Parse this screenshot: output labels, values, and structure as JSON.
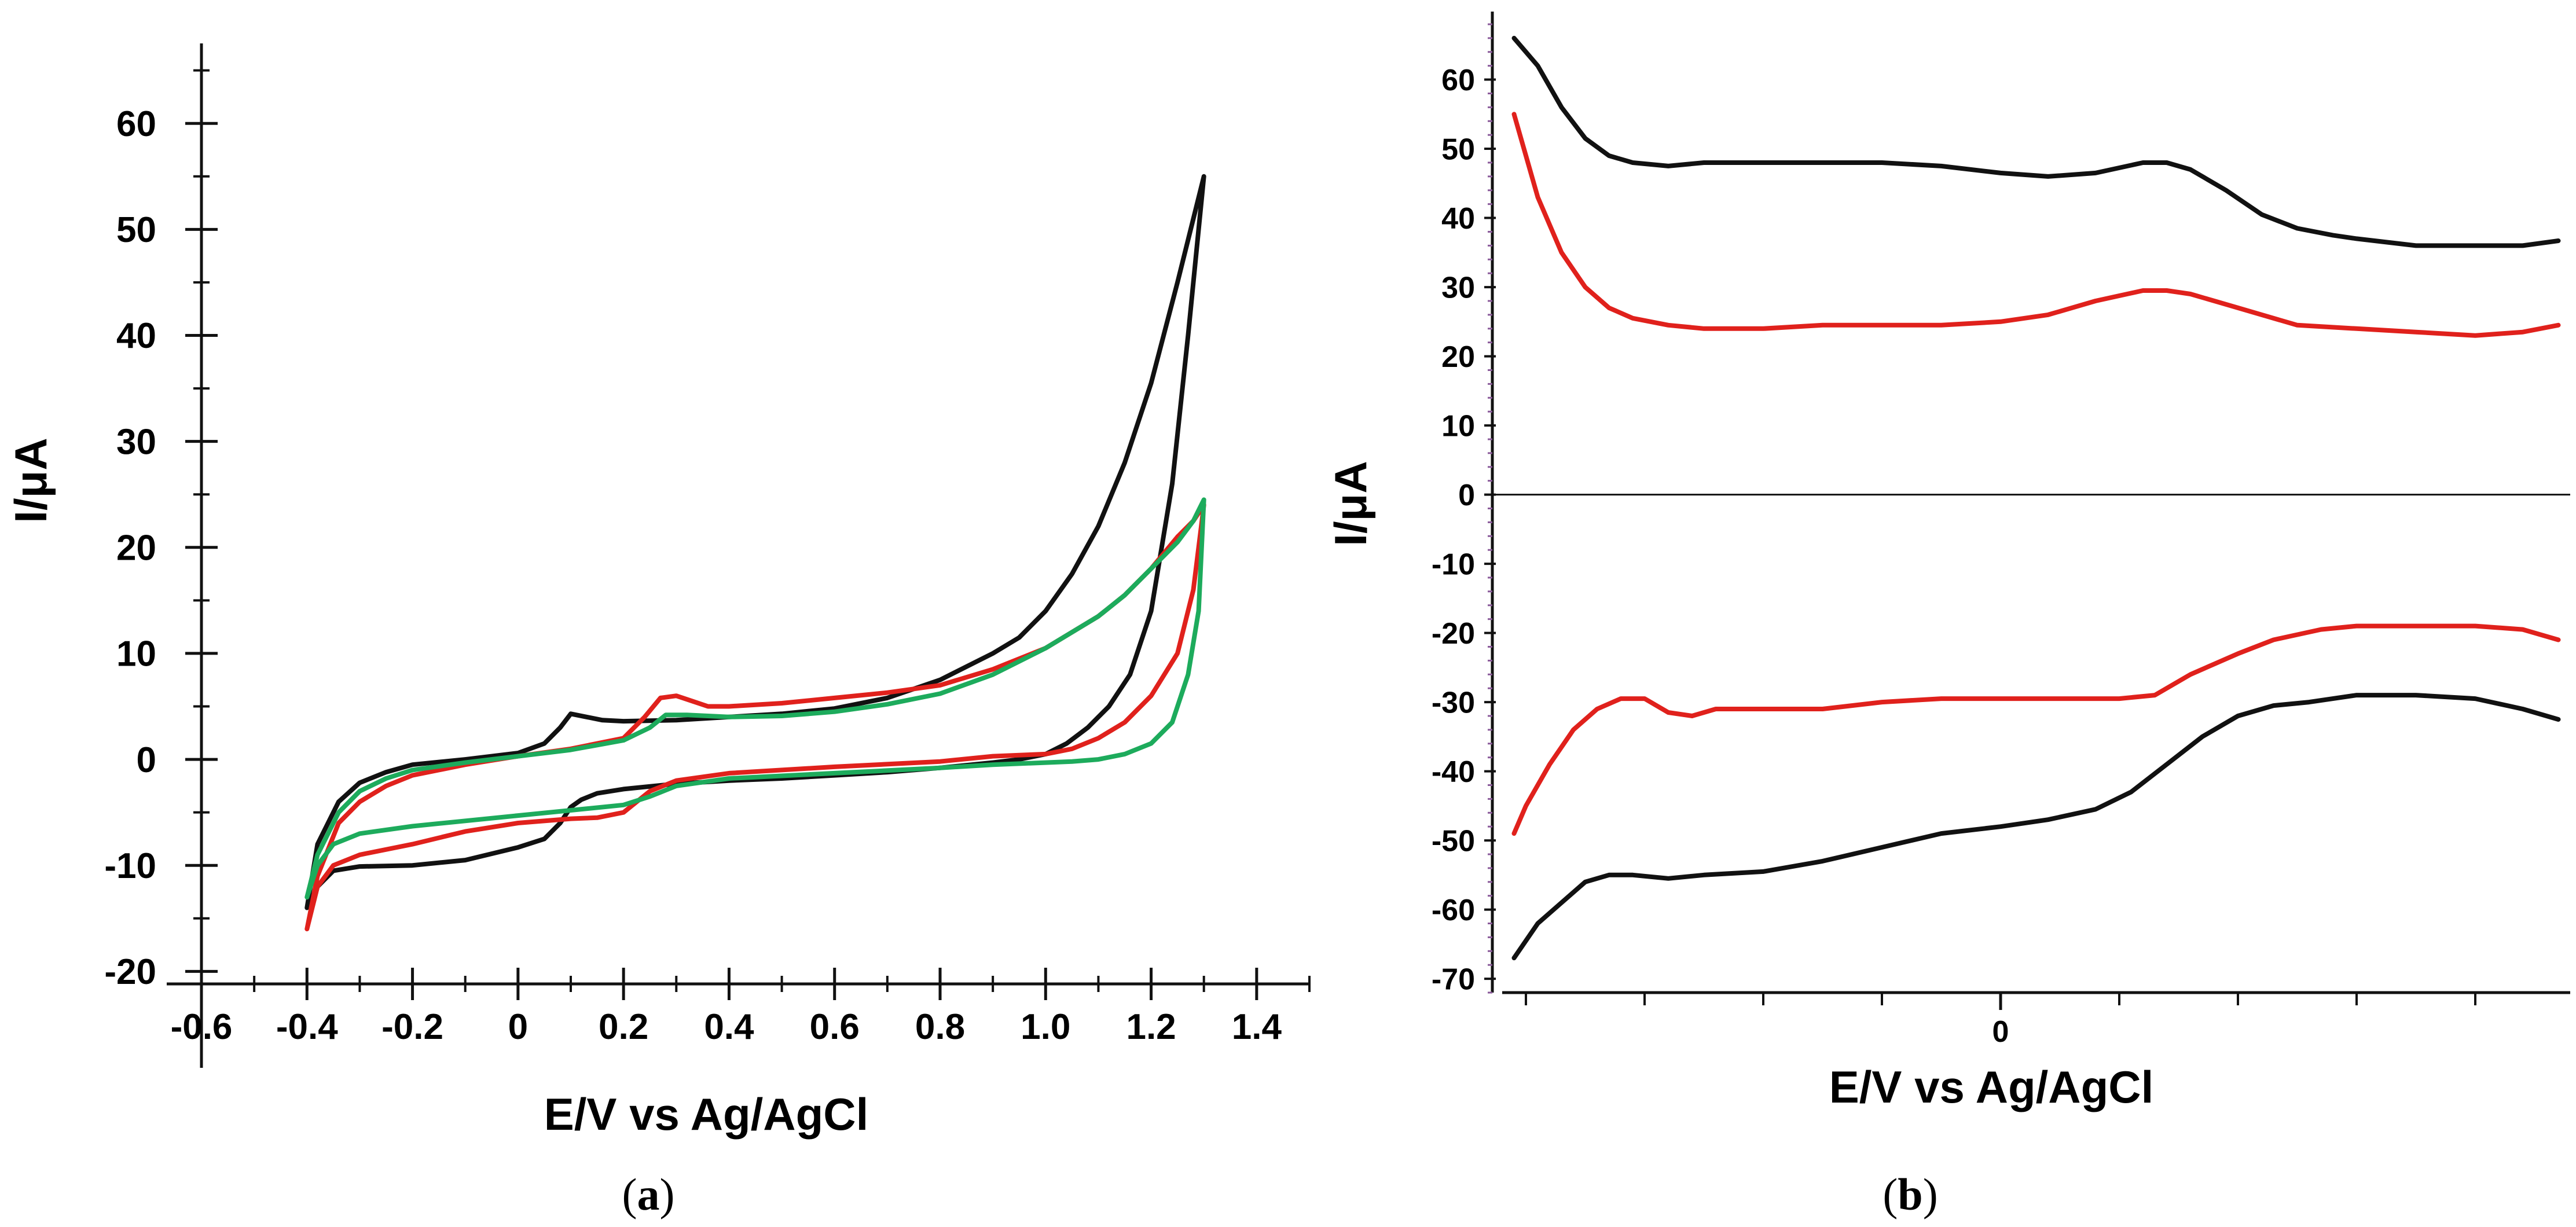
{
  "chart_data": [
    {
      "panel_label": "(a)",
      "panel_letter": "a",
      "type": "line",
      "xlabel": "E/V vs Ag/AgCl",
      "ylabel": "I/μA",
      "xlim": [
        -0.6,
        1.5
      ],
      "ylim": [
        -22,
        67
      ],
      "x_tick_labels": [
        "-0.6",
        "-0.4",
        "-0.2",
        "0",
        "0.2",
        "0.4",
        "0.6",
        "0.8",
        "1.0",
        "1.2",
        "1.4"
      ],
      "x_tick_values": [
        -0.6,
        -0.4,
        -0.2,
        0,
        0.2,
        0.4,
        0.6,
        0.8,
        1.0,
        1.2,
        1.4
      ],
      "y_tick_labels": [
        "-20",
        "-10",
        "0",
        "10",
        "20",
        "30",
        "40",
        "50",
        "60"
      ],
      "y_tick_values": [
        -20,
        -10,
        0,
        10,
        20,
        30,
        40,
        50,
        60
      ],
      "series": [
        {
          "name": "black",
          "color": "#111111",
          "x": [
            -0.4,
            -0.38,
            -0.34,
            -0.3,
            -0.25,
            -0.2,
            -0.1,
            0.0,
            0.05,
            0.08,
            0.1,
            0.13,
            0.16,
            0.2,
            0.3,
            0.4,
            0.5,
            0.6,
            0.7,
            0.8,
            0.9,
            0.95,
            1.0,
            1.05,
            1.1,
            1.15,
            1.2,
            1.25,
            1.3,
            1.27,
            1.24,
            1.2,
            1.16,
            1.12,
            1.08,
            1.04,
            1.0,
            0.95,
            0.9,
            0.8,
            0.7,
            0.6,
            0.5,
            0.4,
            0.3,
            0.2,
            0.15,
            0.12,
            0.1,
            0.08,
            0.05,
            0.0,
            -0.1,
            -0.2,
            -0.3,
            -0.35,
            -0.38,
            -0.4
          ],
          "y": [
            -14,
            -8,
            -4,
            -2.2,
            -1.2,
            -0.5,
            0.0,
            0.6,
            1.5,
            3.0,
            4.3,
            4.0,
            3.7,
            3.6,
            3.7,
            4.0,
            4.3,
            4.8,
            5.8,
            7.5,
            10.0,
            11.5,
            14.0,
            17.5,
            22.0,
            28.0,
            35.5,
            45.0,
            55.0,
            40.0,
            26.0,
            14.0,
            8.0,
            5.0,
            3.0,
            1.5,
            0.5,
            0.0,
            -0.3,
            -0.8,
            -1.2,
            -1.5,
            -1.8,
            -2.0,
            -2.3,
            -2.8,
            -3.2,
            -3.8,
            -4.5,
            -6.0,
            -7.5,
            -8.3,
            -9.5,
            -10.0,
            -10.1,
            -10.5,
            -12.0,
            -14.0
          ]
        },
        {
          "name": "red",
          "color": "#e0211c",
          "x": [
            -0.4,
            -0.38,
            -0.34,
            -0.3,
            -0.25,
            -0.2,
            -0.1,
            0.0,
            0.1,
            0.2,
            0.24,
            0.27,
            0.3,
            0.33,
            0.36,
            0.4,
            0.5,
            0.6,
            0.7,
            0.8,
            0.9,
            1.0,
            1.1,
            1.15,
            1.2,
            1.25,
            1.28,
            1.3,
            1.28,
            1.25,
            1.2,
            1.15,
            1.1,
            1.05,
            1.0,
            0.9,
            0.8,
            0.6,
            0.4,
            0.3,
            0.25,
            0.2,
            0.15,
            0.1,
            0.0,
            -0.1,
            -0.2,
            -0.3,
            -0.35,
            -0.38,
            -0.4
          ],
          "y": [
            -16,
            -11,
            -6,
            -4,
            -2.5,
            -1.5,
            -0.5,
            0.3,
            1.0,
            2.0,
            4.0,
            5.8,
            6.0,
            5.5,
            5.0,
            5.0,
            5.3,
            5.8,
            6.3,
            7.0,
            8.5,
            10.5,
            13.5,
            15.5,
            18.0,
            21.0,
            22.5,
            24.0,
            16.0,
            10.0,
            6.0,
            3.5,
            2.0,
            1.0,
            0.5,
            0.3,
            -0.2,
            -0.7,
            -1.3,
            -2.0,
            -3.0,
            -5.0,
            -5.5,
            -5.6,
            -6.0,
            -6.8,
            -8.0,
            -9.0,
            -10.0,
            -12.0,
            -16.0
          ]
        },
        {
          "name": "green",
          "color": "#1dab5c",
          "x": [
            -0.4,
            -0.38,
            -0.34,
            -0.3,
            -0.25,
            -0.2,
            -0.1,
            0.0,
            0.1,
            0.2,
            0.25,
            0.28,
            0.32,
            0.4,
            0.5,
            0.6,
            0.7,
            0.8,
            0.9,
            1.0,
            1.1,
            1.15,
            1.2,
            1.25,
            1.28,
            1.3,
            1.29,
            1.27,
            1.24,
            1.2,
            1.15,
            1.1,
            1.05,
            1.0,
            0.9,
            0.8,
            0.6,
            0.4,
            0.3,
            0.25,
            0.2,
            0.1,
            0.0,
            -0.1,
            -0.2,
            -0.3,
            -0.35,
            -0.38,
            -0.4
          ],
          "y": [
            -13,
            -9,
            -5,
            -3,
            -1.8,
            -1.0,
            -0.3,
            0.3,
            0.9,
            1.8,
            3.0,
            4.2,
            4.2,
            4.0,
            4.1,
            4.5,
            5.2,
            6.2,
            8.0,
            10.5,
            13.5,
            15.5,
            18.0,
            20.5,
            22.5,
            24.5,
            14.0,
            8.0,
            3.5,
            1.5,
            0.5,
            0.0,
            -0.2,
            -0.3,
            -0.5,
            -0.8,
            -1.3,
            -1.8,
            -2.5,
            -3.5,
            -4.3,
            -4.8,
            -5.3,
            -5.8,
            -6.3,
            -7.0,
            -8.0,
            -10.0,
            -13.0
          ]
        }
      ]
    },
    {
      "panel_label": "(b)",
      "panel_letter": "b",
      "type": "line",
      "xlabel": "E/V vs Ag/AgCl",
      "ylabel": "I/μA",
      "xlim": [
        -0.42,
        0.48
      ],
      "ylim": [
        -72,
        69
      ],
      "x_tick_labels": [
        "0"
      ],
      "x_tick_values": [
        0
      ],
      "y_tick_labels": [
        "-70",
        "-60",
        "-50",
        "-40",
        "-30",
        "-20",
        "-10",
        "0",
        "10",
        "20",
        "30",
        "40",
        "50",
        "60"
      ],
      "y_tick_values": [
        -70,
        -60,
        -50,
        -40,
        -30,
        -20,
        -10,
        0,
        10,
        20,
        30,
        40,
        50,
        60
      ],
      "zero_line": true,
      "series": [
        {
          "name": "black-upper",
          "color": "#111111",
          "x": [
            -0.41,
            -0.39,
            -0.37,
            -0.35,
            -0.33,
            -0.31,
            -0.28,
            -0.25,
            -0.2,
            -0.15,
            -0.1,
            -0.05,
            0.0,
            0.04,
            0.08,
            0.12,
            0.14,
            0.16,
            0.19,
            0.22,
            0.25,
            0.28,
            0.3,
            0.35,
            0.4,
            0.44,
            0.47
          ],
          "y": [
            66,
            62,
            56,
            51.5,
            49,
            48,
            47.5,
            48,
            48,
            48,
            48,
            47.5,
            46.5,
            46,
            46.5,
            48,
            48,
            47,
            44,
            40.5,
            38.5,
            37.5,
            37,
            36,
            36,
            36,
            36.7
          ]
        },
        {
          "name": "red-upper",
          "color": "#e0211c",
          "x": [
            -0.41,
            -0.4,
            -0.39,
            -0.37,
            -0.35,
            -0.33,
            -0.31,
            -0.28,
            -0.25,
            -0.2,
            -0.15,
            -0.1,
            -0.05,
            0.0,
            0.04,
            0.08,
            0.12,
            0.14,
            0.16,
            0.2,
            0.25,
            0.3,
            0.35,
            0.4,
            0.44,
            0.47
          ],
          "y": [
            55,
            49,
            43,
            35,
            30,
            27,
            25.5,
            24.5,
            24,
            24,
            24.5,
            24.5,
            24.5,
            25,
            26,
            28,
            29.5,
            29.5,
            29,
            27,
            24.5,
            24,
            23.5,
            23,
            23.5,
            24.5
          ]
        },
        {
          "name": "red-lower",
          "color": "#e0211c",
          "x": [
            -0.41,
            -0.4,
            -0.38,
            -0.36,
            -0.34,
            -0.32,
            -0.3,
            -0.28,
            -0.26,
            -0.24,
            -0.2,
            -0.15,
            -0.1,
            -0.05,
            0.0,
            0.05,
            0.1,
            0.13,
            0.16,
            0.2,
            0.23,
            0.27,
            0.3,
            0.35,
            0.4,
            0.44,
            0.47
          ],
          "y": [
            -49,
            -45,
            -39,
            -34,
            -31,
            -29.5,
            -29.5,
            -31.5,
            -32,
            -31,
            -31,
            -31,
            -30,
            -29.5,
            -29.5,
            -29.5,
            -29.5,
            -29,
            -26,
            -23,
            -21,
            -19.5,
            -19,
            -19,
            -19,
            -19.5,
            -21
          ]
        },
        {
          "name": "black-lower",
          "color": "#111111",
          "x": [
            -0.41,
            -0.39,
            -0.37,
            -0.35,
            -0.33,
            -0.31,
            -0.28,
            -0.25,
            -0.2,
            -0.15,
            -0.1,
            -0.05,
            0.0,
            0.04,
            0.08,
            0.11,
            0.14,
            0.17,
            0.2,
            0.23,
            0.26,
            0.3,
            0.35,
            0.4,
            0.44,
            0.47
          ],
          "y": [
            -67,
            -62,
            -59,
            -56,
            -55,
            -55,
            -55.5,
            -55,
            -54.5,
            -53,
            -51,
            -49,
            -48,
            -47,
            -45.5,
            -43,
            -39,
            -35,
            -32,
            -30.5,
            -30,
            -29,
            -29,
            -29.5,
            -31,
            -32.5
          ]
        }
      ]
    }
  ]
}
